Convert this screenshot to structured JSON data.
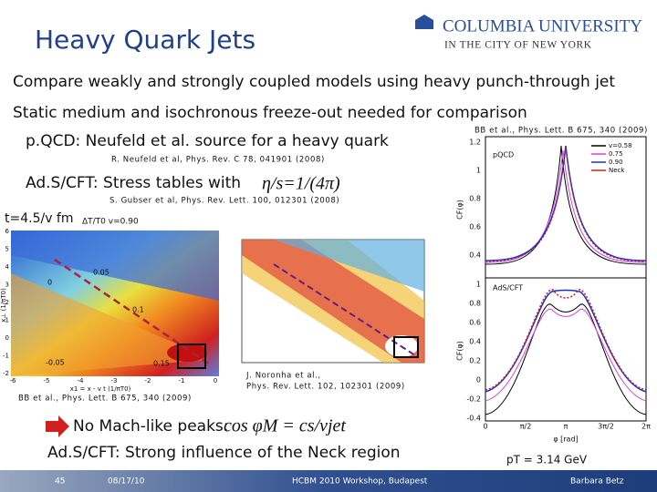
{
  "header": {
    "title": "Heavy Quark Jets",
    "logo_line1": "COLUMBIA UNIVERSITY",
    "logo_line2": "IN THE CITY OF NEW YORK"
  },
  "body": {
    "line1": "Compare weakly and strongly coupled models using heavy punch-through jet",
    "line2": "Static medium and isochronous freeze-out needed for comparison",
    "pqcd": "p.QCD: Neufeld et al. source for a heavy quark",
    "pqcd_cite": "R. Neufeld et al, Phys. Rev. C 78, 041901 (2008)",
    "ads": "Ad.S/CFT: Stress tables with",
    "ads_formula": "η/s=1/(4π)",
    "ads_cite": "S. Gubser et al, Phys. Rev. Lett. 100, 012301 (2008)",
    "time": "t=4.5/v fm",
    "noronha_cite": [
      "J. Noronha et al.,",
      "Phys. Rev. Lett. 102, 102301 (2009)"
    ],
    "bb_cite": "BB et al., Phys. Lett. B 675, 340 (2009)",
    "conclusion1": "No Mach-like peaks:",
    "conclusion_formula": "cos φM = cs/vjet",
    "conclusion2": "Ad.S/CFT: Strong influence of the Neck region"
  },
  "left_plot": {
    "title": "ΔT/T0  v=0.90",
    "labels": [
      "0.05",
      "0",
      "0.1",
      "-0.05",
      "0.15"
    ],
    "yticks": [
      "6",
      "5",
      "4",
      "3",
      "2",
      "1",
      "0",
      "-1",
      "-2"
    ],
    "xticks": [
      "-6",
      "-5",
      "-4",
      "-3",
      "-2",
      "-1",
      "0"
    ],
    "ylabel": "x⊥ (1/πT0)",
    "xlabel": "x1 = x - v t  (1/πT0)"
  },
  "right_plot": {
    "cite": "BB et al., Phys. Lett. B 675, 340 (2009)",
    "panel1": "pQCD",
    "panel2": "AdS/CFT",
    "legend": [
      "v=0.58",
      "0.75",
      "0.90",
      "Neck"
    ],
    "ylabel": "CF(φ)",
    "xlabel": "φ [rad]",
    "yticks_top": [
      "1.2",
      "1",
      "0.8",
      "0.6",
      "0.4"
    ],
    "yticks_bottom": [
      "1",
      "0.8",
      "0.6",
      "0.4",
      "0.2",
      "0",
      "-0.2",
      "-0.4"
    ],
    "xticks": [
      "0",
      "π/2",
      "π",
      "3π/2",
      "2π"
    ],
    "momentum": "pT = 3.14 GeV"
  },
  "footer": {
    "page": "45",
    "date": "08/17/10",
    "event": "HCBM 2010 Workshop, Budapest",
    "author": "Barbara Betz"
  }
}
